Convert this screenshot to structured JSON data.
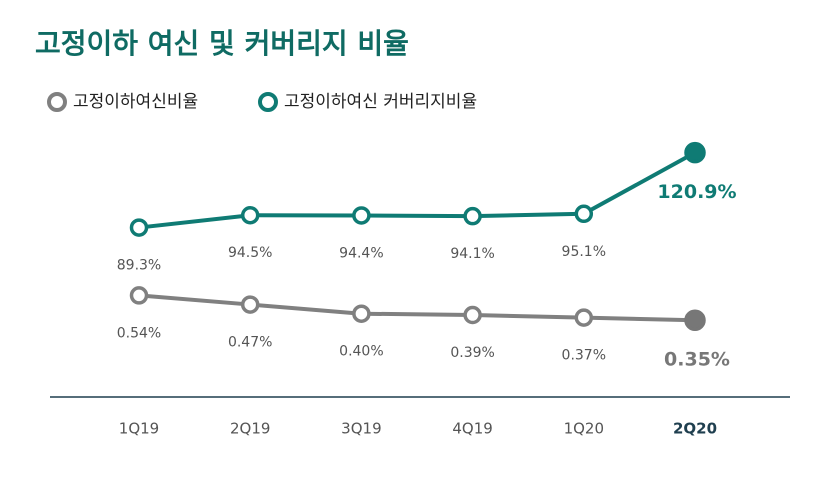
{
  "chart_data": {
    "type": "line",
    "title": "고정이하 여신 및 커버리지 비율",
    "categories": [
      "1Q19",
      "2Q19",
      "3Q19",
      "4Q19",
      "1Q20",
      "2Q20"
    ],
    "series": [
      {
        "name": "고정이하여신비율",
        "color": "#808080",
        "axis": "y2",
        "highlight": "last",
        "values": [
          0.54,
          0.47,
          0.4,
          0.39,
          0.37,
          0.35
        ],
        "value_labels": [
          "0.54%",
          "0.47%",
          "0.40%",
          "0.39%",
          "0.37%",
          "0.35%"
        ]
      },
      {
        "name": "고정이하여신 커버리지비율",
        "color": "#0f7b74",
        "axis": "y",
        "highlight": "last",
        "values": [
          89.3,
          94.5,
          94.4,
          94.1,
          95.1,
          120.9
        ],
        "value_labels": [
          "89.3%",
          "94.5%",
          "94.4%",
          "94.1%",
          "95.1%",
          "120.9%"
        ]
      }
    ],
    "ylim": [
      20,
      130
    ],
    "y2lim": [
      -0.2,
      1.8
    ],
    "grid": false
  }
}
